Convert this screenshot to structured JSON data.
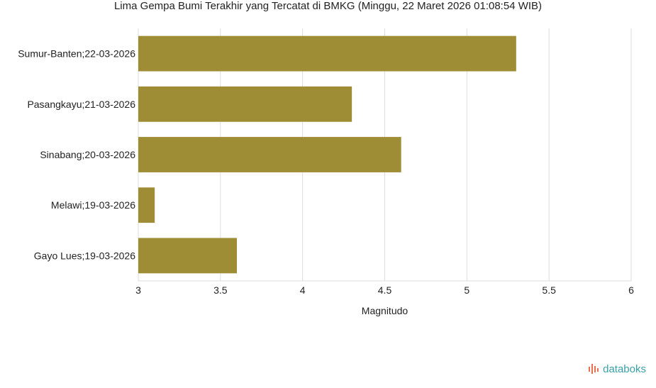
{
  "chart_data": {
    "type": "bar",
    "orientation": "horizontal",
    "title": "Lima Gempa Bumi Terakhir yang Tercatat di BMKG (Minggu, 22 Maret 2026 01:08:54 WIB)",
    "xlabel": "Magnitudo",
    "ylabel": "",
    "categories": [
      "Sumur-Banten;22-03-2026",
      "Pasangkayu;21-03-2026",
      "Sinabang;20-03-2026",
      "Melawi;19-03-2026",
      "Gayo Lues;19-03-2026"
    ],
    "values": [
      5.3,
      4.3,
      4.6,
      3.1,
      3.6
    ],
    "xlim": [
      3,
      6
    ],
    "xticks": [
      "3",
      "3.5",
      "4",
      "4.5",
      "5",
      "5.5",
      "6"
    ],
    "grid": true,
    "bar_color": "#9e8d35"
  },
  "brand": {
    "name": "databoks",
    "color": "#3aa0a8"
  }
}
